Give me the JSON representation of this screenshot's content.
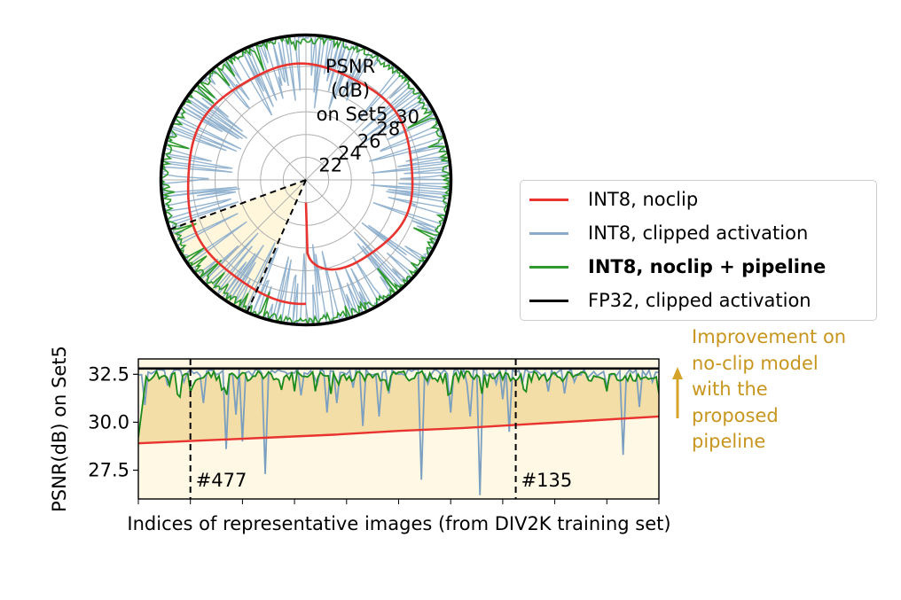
{
  "chart_data": [
    {
      "type": "line",
      "projection": "polar",
      "title": "PSNR (dB) on Set5",
      "title_lines": [
        "PSNR",
        "(dB)",
        "on Set5"
      ],
      "radial_ticks": [
        "22",
        "24",
        "26",
        "28",
        "30"
      ],
      "rlim": [
        20,
        32.8
      ],
      "grid": true,
      "highlight_sector": {
        "from_index": 477,
        "to_index": 135,
        "fill": "#fff6dc"
      },
      "series": [
        {
          "name": "INT8, noclip",
          "color": "#e8332e",
          "summary": "rises smoothly from 28.9 to 30.3 around the circle"
        },
        {
          "name": "INT8, clipped activation",
          "color": "#8aaccb",
          "summary": "mostly ~32.5 with frequent dips to 26-29"
        },
        {
          "name": "INT8, noclip + pipeline",
          "color": "#2e9a2e",
          "summary": "mostly ~32.3-32.8 with small dips"
        },
        {
          "name": "FP32, clipped activation",
          "color": "#000000",
          "summary": "constant ~32.8"
        }
      ]
    },
    {
      "type": "line",
      "xlabel": "Indices of representative images (from DIV2K training set)",
      "ylabel": "PSNR(dB) on Set5",
      "ylim": [
        26.0,
        33.3
      ],
      "yticks": [
        "27.5",
        "30.0",
        "32.5"
      ],
      "xlim": [
        0,
        800
      ],
      "vlines": [
        {
          "label": "#477",
          "x": 80
        },
        {
          "label": "#135",
          "x": 580
        }
      ],
      "series": [
        {
          "name": "INT8, noclip",
          "color": "#e8332e",
          "x": [
            0,
            100,
            200,
            300,
            400,
            500,
            600,
            700,
            800
          ],
          "values": [
            28.9,
            29.05,
            29.2,
            29.35,
            29.55,
            29.7,
            29.9,
            30.1,
            30.3
          ]
        },
        {
          "name": "INT8, clipped activation",
          "color": "#7a9fc0",
          "baseline": 32.6,
          "dips": [
            [
              10,
              30.9
            ],
            [
              45,
              31.9
            ],
            [
              70,
              32.1
            ],
            [
              100,
              31.0
            ],
            [
              135,
              28.6
            ],
            [
              150,
              30.4
            ],
            [
              160,
              29.0
            ],
            [
              195,
              27.3
            ],
            [
              250,
              31.4
            ],
            [
              275,
              32.0
            ],
            [
              290,
              30.5
            ],
            [
              305,
              31.0
            ],
            [
              330,
              31.8
            ],
            [
              345,
              29.8
            ],
            [
              370,
              30.3
            ],
            [
              385,
              31.5
            ],
            [
              435,
              27.0
            ],
            [
              445,
              32.0
            ],
            [
              480,
              30.5
            ],
            [
              505,
              32.0
            ],
            [
              510,
              30.3
            ],
            [
              525,
              26.2
            ],
            [
              550,
              32.0
            ],
            [
              560,
              31.2
            ],
            [
              570,
              29.5
            ],
            [
              590,
              32.0
            ],
            [
              630,
              31.6
            ],
            [
              655,
              31.5
            ],
            [
              670,
              32.1
            ],
            [
              690,
              32.3
            ],
            [
              720,
              31.9
            ],
            [
              745,
              28.3
            ],
            [
              770,
              30.8
            ],
            [
              790,
              32.1
            ]
          ]
        },
        {
          "name": "INT8, noclip + pipeline",
          "color": "#1a8a1a",
          "start": 29.2,
          "baseline": 32.4
        },
        {
          "name": "FP32, clipped activation",
          "color": "#000000",
          "x": [
            0,
            800
          ],
          "values": [
            32.8,
            32.8
          ]
        }
      ]
    }
  ],
  "legend": {
    "placement": "right",
    "items": [
      {
        "label": "INT8, noclip",
        "color": "#e8332e",
        "bold": false
      },
      {
        "label": "INT8, clipped activation",
        "color": "#8aaccb",
        "bold": false
      },
      {
        "label": "INT8, noclip + pipeline",
        "color": "#2e9a2e",
        "bold": true
      },
      {
        "label": "FP32, clipped activation",
        "color": "#000000",
        "bold": false
      }
    ]
  },
  "annotation": {
    "lines": [
      "Improvement on",
      "no-clip model",
      "with the",
      "proposed",
      "pipeline"
    ],
    "color": "#c8961e"
  },
  "colors": {
    "gap_fill": "#f3dea7",
    "background_fill": "#fff8e4"
  }
}
